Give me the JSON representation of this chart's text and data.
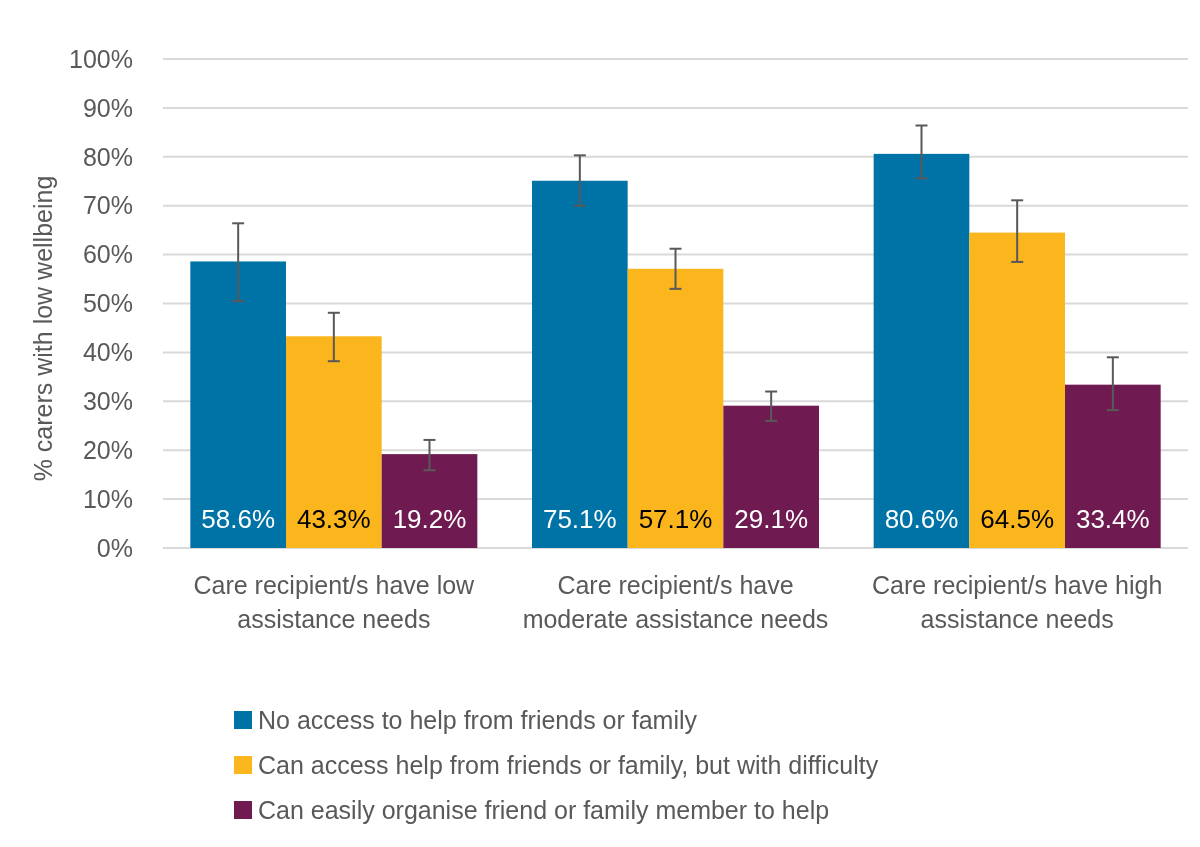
{
  "chart_data": {
    "type": "bar",
    "ylabel": "% carers with low wellbeing",
    "categories": [
      "Care recipient/s have low assistance needs",
      "Care recipient/s have moderate assistance needs",
      "Care recipient/s have high assistance needs"
    ],
    "series": [
      {
        "name": "No access to help from friends or family",
        "color": "#0073a6",
        "values": [
          58.6,
          75.1,
          80.6
        ],
        "errors": [
          [
            50.5,
            66.4
          ],
          [
            70.0,
            80.3
          ],
          [
            75.6,
            86.4
          ]
        ],
        "value_labels": [
          "58.6%",
          "75.1%",
          "80.6%"
        ]
      },
      {
        "name": "Can access help from friends or family, but with difficulty",
        "color": "#fbb61d",
        "values": [
          43.3,
          57.1,
          64.5
        ],
        "errors": [
          [
            38.2,
            48.1
          ],
          [
            53.0,
            61.2
          ],
          [
            58.5,
            71.1
          ]
        ],
        "value_labels": [
          "43.3%",
          "57.1%",
          "64.5%"
        ]
      },
      {
        "name": "Can easily organise friend or family member to help",
        "color": "#6f1a50",
        "values": [
          19.2,
          29.1,
          33.4
        ],
        "errors": [
          [
            15.9,
            22.1
          ],
          [
            26.0,
            32.0
          ],
          [
            28.2,
            39.0
          ]
        ],
        "value_labels": [
          "19.2%",
          "29.1%",
          "33.4%"
        ]
      }
    ],
    "ylim": [
      0,
      100
    ],
    "yticks": [
      {
        "value": 0,
        "label": "0%"
      },
      {
        "value": 10,
        "label": "10%"
      },
      {
        "value": 20,
        "label": "20%"
      },
      {
        "value": 30,
        "label": "30%"
      },
      {
        "value": 40,
        "label": "40%"
      },
      {
        "value": 50,
        "label": "50%"
      },
      {
        "value": 60,
        "label": "60%"
      },
      {
        "value": 70,
        "label": "70%"
      },
      {
        "value": 80,
        "label": "80%"
      },
      {
        "value": 90,
        "label": "90%"
      },
      {
        "value": 100,
        "label": "100%"
      }
    ],
    "grid": "y",
    "legend": "bottom"
  }
}
